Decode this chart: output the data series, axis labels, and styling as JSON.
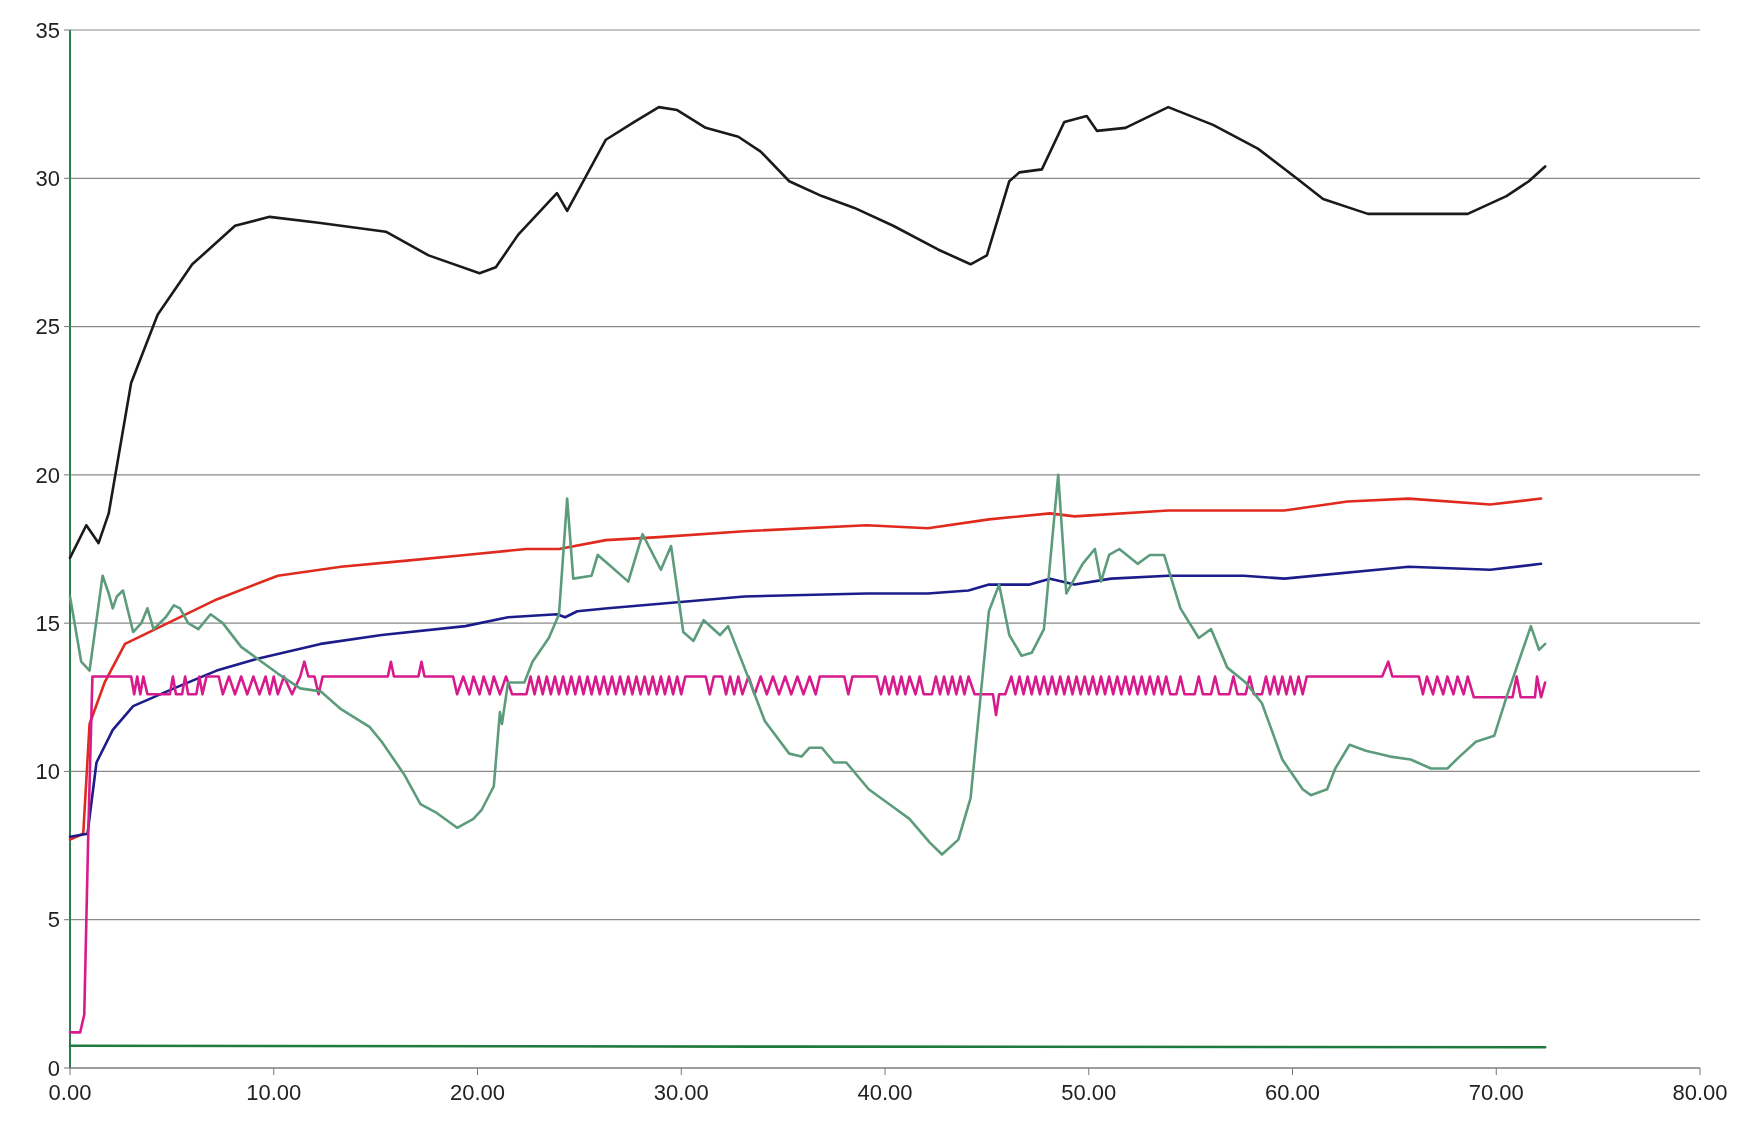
{
  "chart_data": {
    "type": "line",
    "xlim": [
      0,
      80
    ],
    "ylim": [
      0,
      35
    ],
    "xticks": [
      {
        "value": 0,
        "label": "0.00"
      },
      {
        "value": 10,
        "label": "10.00"
      },
      {
        "value": 20,
        "label": "20.00"
      },
      {
        "value": 30,
        "label": "30.00"
      },
      {
        "value": 40,
        "label": "40.00"
      },
      {
        "value": 50,
        "label": "50.00"
      },
      {
        "value": 60,
        "label": "60.00"
      },
      {
        "value": 70,
        "label": "70.00"
      },
      {
        "value": 80,
        "label": "80.00"
      }
    ],
    "yticks": [
      0,
      5,
      10,
      15,
      20,
      25,
      30,
      35
    ],
    "grid": "y",
    "marker": "none",
    "line_style": "solid",
    "series": [
      {
        "color": "#1a1a1a",
        "x": [
          0,
          0.8,
          1.4,
          1.9,
          3,
          4.3,
          6,
          7.3,
          8.1,
          9.8,
          12.2,
          15.5,
          17.6,
          20.1,
          20.9,
          22,
          23.9,
          24.4,
          26.3,
          27.7,
          28.9,
          29.8,
          31.2,
          32.8,
          33.9,
          35.3,
          36.9,
          38.5,
          40.4,
          42.6,
          44.2,
          45,
          46.1,
          46.6,
          47.7,
          48.8,
          49.9,
          50.4,
          51.8,
          53.9,
          56.1,
          58.3,
          60.2,
          61.5,
          63.7,
          66.4,
          68.6,
          70.5,
          71.6,
          72.4
        ],
        "values": [
          17.2,
          18.3,
          17.7,
          18.7,
          23.1,
          25.4,
          27.1,
          27.9,
          28.4,
          28.7,
          28.5,
          28.2,
          27.4,
          26.8,
          27.0,
          28.1,
          29.5,
          28.9,
          31.3,
          31.9,
          32.4,
          32.3,
          31.7,
          31.4,
          30.9,
          29.9,
          29.4,
          29.0,
          28.4,
          27.6,
          27.1,
          27.4,
          29.9,
          30.2,
          30.3,
          31.9,
          32.1,
          31.6,
          31.7,
          32.4,
          31.8,
          31.0,
          30.0,
          29.3,
          28.8,
          28.8,
          28.8,
          29.4,
          29.9,
          30.4
        ]
      },
      {
        "color": "#e02a1e",
        "x": [
          0,
          0.65,
          0.96,
          1.7,
          2.7,
          5.1,
          7.2,
          10.2,
          13.3,
          16.4,
          19.4,
          22.4,
          24,
          26.3,
          28.9,
          33.1,
          39.1,
          42.1,
          45.1,
          48.1,
          49.3,
          53.9,
          57.6,
          59.6,
          62.7,
          65.7,
          69.7,
          72.2
        ],
        "values": [
          7.7,
          7.9,
          11.6,
          13.0,
          14.3,
          15.1,
          15.8,
          16.6,
          16.9,
          17.1,
          17.3,
          17.5,
          17.5,
          17.8,
          17.9,
          18.1,
          18.3,
          18.2,
          18.5,
          18.7,
          18.6,
          18.8,
          18.8,
          18.8,
          19.1,
          19.2,
          19.0,
          19.2
        ]
      },
      {
        "color": "#1c1c8a",
        "x": [
          0,
          0.86,
          1.3,
          2.1,
          3.1,
          5.1,
          7.2,
          9.2,
          12.3,
          15.3,
          19.4,
          21.5,
          23.9,
          24.3,
          24.9,
          26.4,
          33.1,
          39.1,
          42.1,
          44.1,
          45.1,
          47.1,
          48.1,
          49.3,
          51.1,
          53.9,
          57.6,
          59.6,
          65.7,
          69.7,
          72.2
        ],
        "values": [
          7.8,
          7.9,
          10.3,
          11.4,
          12.2,
          12.8,
          13.4,
          13.8,
          14.3,
          14.6,
          14.9,
          15.2,
          15.3,
          15.2,
          15.4,
          15.5,
          15.9,
          16.0,
          16.0,
          16.1,
          16.3,
          16.3,
          16.5,
          16.3,
          16.5,
          16.6,
          16.6,
          16.5,
          16.9,
          16.8,
          17.0
        ]
      },
      {
        "color": "#d81b8c",
        "x": [
          0,
          0.5,
          0.7,
          0.9,
          1.1,
          3.0,
          3.15,
          3.3,
          3.45,
          3.6,
          3.8,
          4.9,
          5.05,
          5.2,
          5.5,
          5.65,
          5.8,
          6.2,
          6.35,
          6.5,
          6.7,
          7.3,
          7.5,
          7.8,
          8.1,
          8.4,
          8.7,
          9.0,
          9.3,
          9.6,
          9.8,
          10.0,
          10.2,
          10.5,
          10.9,
          11.3,
          11.5,
          11.7,
          12.0,
          12.2,
          12.4,
          15.6,
          15.75,
          15.9,
          17.1,
          17.25,
          17.4,
          18.8,
          19.0,
          19.3,
          19.6,
          19.8,
          20.1,
          20.3,
          20.6,
          20.8,
          21.1,
          21.4,
          21.7,
          22.4,
          22.6,
          22.8,
          23.0,
          23.2,
          23.4,
          23.6,
          23.8,
          24.0,
          24.2,
          24.4,
          24.6,
          24.8,
          25.0,
          25.2,
          25.4,
          25.6,
          25.8,
          26.0,
          26.2,
          26.4,
          26.6,
          26.8,
          27.0,
          27.2,
          27.4,
          27.6,
          27.8,
          28.0,
          28.2,
          28.4,
          28.6,
          28.8,
          29.0,
          29.2,
          29.4,
          29.6,
          29.8,
          30.0,
          30.2,
          31.2,
          31.4,
          31.6,
          32.0,
          32.2,
          32.4,
          32.6,
          32.8,
          33.0,
          33.3,
          33.6,
          33.9,
          34.2,
          34.5,
          34.8,
          35.1,
          35.4,
          35.7,
          36.0,
          36.3,
          36.6,
          36.8,
          38.0,
          38.2,
          38.4,
          39.6,
          39.8,
          40.0,
          40.2,
          40.4,
          40.6,
          40.8,
          41.0,
          41.2,
          41.5,
          41.7,
          41.9,
          42.3,
          42.5,
          42.7,
          42.9,
          43.1,
          43.3,
          43.5,
          43.7,
          43.9,
          44.1,
          44.4,
          45.3,
          45.45,
          45.6,
          45.9,
          46.2,
          46.4,
          46.6,
          46.8,
          47.0,
          47.2,
          47.4,
          47.6,
          47.8,
          48.0,
          48.2,
          48.4,
          48.6,
          48.8,
          49.0,
          49.2,
          49.4,
          49.6,
          49.8,
          50.0,
          50.2,
          50.4,
          50.6,
          50.8,
          51.0,
          51.2,
          51.4,
          51.6,
          51.8,
          52.0,
          52.2,
          52.4,
          52.6,
          52.8,
          53.0,
          53.2,
          53.4,
          53.6,
          53.8,
          54.0,
          54.3,
          54.5,
          54.7,
          55.2,
          55.4,
          55.6,
          56.0,
          56.2,
          56.4,
          56.9,
          57.1,
          57.3,
          57.7,
          57.9,
          58.1,
          58.5,
          58.7,
          58.9,
          59.1,
          59.3,
          59.5,
          59.7,
          59.9,
          60.1,
          60.3,
          60.5,
          60.7,
          64.4,
          64.7,
          64.9,
          66.2,
          66.4,
          66.6,
          66.9,
          67.1,
          67.4,
          67.6,
          67.9,
          68.1,
          68.4,
          68.6,
          68.9,
          70.8,
          71.0,
          71.2,
          71.9,
          72.0,
          72.2,
          72.4
        ],
        "values": [
          1.2,
          1.2,
          1.8,
          8,
          13.2,
          13.2,
          12.6,
          13.2,
          12.6,
          13.2,
          12.6,
          12.6,
          13.2,
          12.6,
          12.6,
          13.2,
          12.6,
          12.6,
          13.2,
          12.6,
          13.2,
          13.2,
          12.6,
          13.2,
          12.6,
          13.2,
          12.6,
          13.2,
          12.6,
          13.2,
          12.6,
          13.2,
          12.6,
          13.2,
          12.6,
          13.2,
          13.7,
          13.2,
          13.2,
          12.6,
          13.2,
          13.2,
          13.7,
          13.2,
          13.2,
          13.7,
          13.2,
          13.2,
          12.6,
          13.2,
          12.6,
          13.2,
          12.6,
          13.2,
          12.6,
          13.2,
          12.6,
          13.2,
          12.6,
          12.6,
          13.2,
          12.6,
          13.2,
          12.6,
          13.2,
          12.6,
          13.2,
          12.6,
          13.2,
          12.6,
          13.2,
          12.6,
          13.2,
          12.6,
          13.2,
          12.6,
          13.2,
          12.6,
          13.2,
          12.6,
          13.2,
          12.6,
          13.2,
          12.6,
          13.2,
          12.6,
          13.2,
          12.6,
          13.2,
          12.6,
          13.2,
          12.6,
          13.2,
          12.6,
          13.2,
          12.6,
          13.2,
          12.6,
          13.2,
          13.2,
          12.6,
          13.2,
          13.2,
          12.6,
          13.2,
          12.6,
          13.2,
          12.6,
          13.2,
          12.6,
          13.2,
          12.6,
          13.2,
          12.6,
          13.2,
          12.6,
          13.2,
          12.6,
          13.2,
          12.6,
          13.2,
          13.2,
          12.6,
          13.2,
          13.2,
          12.6,
          13.2,
          12.6,
          13.2,
          12.6,
          13.2,
          12.6,
          13.2,
          12.6,
          13.2,
          12.6,
          12.6,
          13.2,
          12.6,
          13.2,
          12.6,
          13.2,
          12.6,
          13.2,
          12.6,
          13.2,
          12.6,
          12.6,
          11.9,
          12.6,
          12.6,
          13.2,
          12.6,
          13.2,
          12.6,
          13.2,
          12.6,
          13.2,
          12.6,
          13.2,
          12.6,
          13.2,
          12.6,
          13.2,
          12.6,
          13.2,
          12.6,
          13.2,
          12.6,
          13.2,
          12.6,
          13.2,
          12.6,
          13.2,
          12.6,
          13.2,
          12.6,
          13.2,
          12.6,
          13.2,
          12.6,
          13.2,
          12.6,
          13.2,
          12.6,
          13.2,
          12.6,
          13.2,
          12.6,
          13.2,
          12.6,
          12.6,
          13.2,
          12.6,
          12.6,
          13.2,
          12.6,
          12.6,
          13.2,
          12.6,
          12.6,
          13.2,
          12.6,
          12.6,
          13.2,
          12.6,
          12.6,
          13.2,
          12.6,
          13.2,
          12.6,
          13.2,
          12.6,
          13.2,
          12.6,
          13.2,
          12.6,
          13.2,
          13.2,
          13.7,
          13.2,
          13.2,
          12.6,
          13.2,
          12.6,
          13.2,
          12.6,
          13.2,
          12.6,
          13.2,
          12.6,
          13.2,
          12.5,
          12.5,
          13.2,
          12.5,
          12.5,
          13.2,
          12.5,
          13.0
        ]
      },
      {
        "color": "#5c9c7c",
        "x": [
          0,
          0.55,
          0.96,
          1.6,
          1.9,
          2.1,
          2.3,
          2.6,
          3.1,
          3.5,
          3.8,
          4.1,
          4.7,
          5.1,
          5.4,
          5.8,
          6.3,
          6.9,
          7.5,
          8.4,
          9.2,
          10.2,
          11.3,
          12.3,
          13.3,
          14.7,
          15.3,
          16.4,
          17.2,
          18.0,
          19.0,
          19.8,
          20.2,
          20.8,
          21.1,
          21.2,
          21.5,
          22.3,
          22.7,
          23.5,
          24.0,
          24.4,
          24.7,
          25.6,
          25.9,
          26.4,
          27.4,
          28.1,
          29.0,
          29.5,
          30.1,
          30.6,
          31.1,
          31.9,
          32.3,
          33.1,
          34.1,
          35.3,
          35.9,
          36.3,
          36.9,
          37.5,
          38.1,
          39.2,
          40.4,
          41.2,
          42.2,
          42.8,
          43.6,
          44.2,
          45.1,
          45.6,
          46.1,
          46.7,
          47.2,
          47.8,
          48.5,
          48.9,
          49.7,
          50.3,
          50.6,
          51.0,
          51.5,
          52.4,
          53.0,
          53.7,
          54.5,
          55.4,
          56.0,
          56.8,
          57.7,
          58.5,
          59.5,
          60.5,
          60.9,
          61.7,
          62.1,
          62.8,
          63.6,
          64.8,
          65.8,
          66.8,
          67.6,
          68.2,
          69.0,
          69.9,
          70.5,
          71.7,
          72.1,
          72.4
        ],
        "values": [
          15.9,
          13.7,
          13.4,
          16.6,
          16.0,
          15.5,
          15.9,
          16.1,
          14.7,
          15.0,
          15.5,
          14.8,
          15.2,
          15.6,
          15.5,
          15.0,
          14.8,
          15.3,
          15.0,
          14.2,
          13.8,
          13.3,
          12.8,
          12.7,
          12.1,
          11.5,
          11.0,
          9.9,
          8.9,
          8.6,
          8.1,
          8.4,
          8.7,
          9.5,
          12.0,
          11.6,
          13.0,
          13.0,
          13.7,
          14.5,
          15.3,
          19.2,
          16.5,
          16.6,
          17.3,
          17.0,
          16.4,
          18.0,
          16.8,
          17.6,
          14.7,
          14.4,
          15.1,
          14.6,
          14.9,
          13.5,
          11.7,
          10.6,
          10.5,
          10.8,
          10.8,
          10.3,
          10.3,
          9.4,
          8.8,
          8.4,
          7.6,
          7.2,
          7.7,
          9.1,
          15.4,
          16.3,
          14.6,
          13.9,
          14.0,
          14.8,
          20.0,
          16.0,
          17.0,
          17.5,
          16.4,
          17.3,
          17.5,
          17.0,
          17.3,
          17.3,
          15.5,
          14.5,
          14.8,
          13.5,
          13.0,
          12.3,
          10.4,
          9.4,
          9.2,
          9.4,
          10.1,
          10.9,
          10.7,
          10.5,
          10.4,
          10.1,
          10.1,
          10.5,
          11.0,
          11.2,
          12.5,
          14.9,
          14.1,
          14.3
        ]
      },
      {
        "color": "#1f7a3d",
        "x": [
          0,
          36,
          72.4
        ],
        "values": [
          0.75,
          0.72,
          0.7
        ]
      }
    ]
  }
}
